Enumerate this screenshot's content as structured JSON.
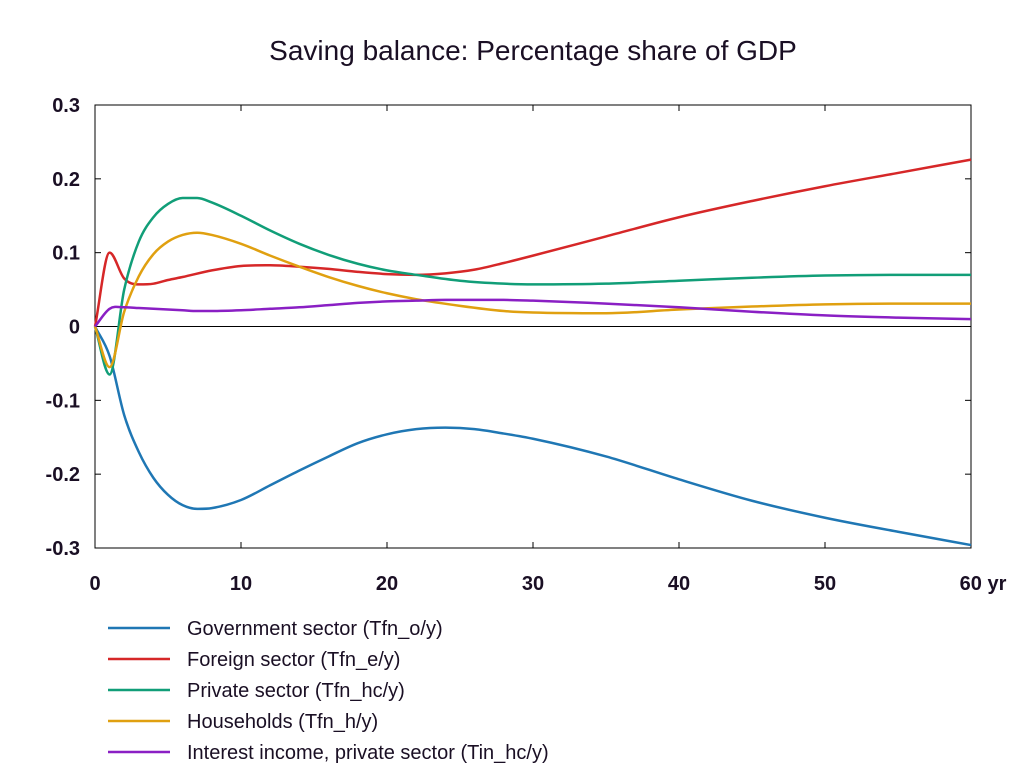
{
  "chart_data": {
    "type": "line",
    "title": "Saving balance: Percentage share of GDP",
    "xlabel": "",
    "ylabel": "",
    "xlim": [
      0,
      60
    ],
    "ylim": [
      -0.3,
      0.3
    ],
    "x_ticks": [
      "0",
      "10",
      "20",
      "30",
      "40",
      "50",
      "60 yr"
    ],
    "y_ticks": [
      "0.3",
      "0.2",
      "0.1",
      "0",
      "-0.1",
      "-0.2",
      "-0.3"
    ],
    "grid": false,
    "legend_position": "bottom",
    "series": [
      {
        "name": "Government sector (Tfn_o/y)",
        "color": "#1f77b4",
        "x": [
          0,
          1,
          2,
          3,
          4,
          5,
          6,
          7,
          8,
          10,
          12,
          14,
          16,
          18,
          20,
          22,
          24,
          26,
          28,
          30,
          35,
          40,
          45,
          50,
          55,
          60
        ],
        "y": [
          0,
          -0.04,
          -0.12,
          -0.17,
          -0.205,
          -0.228,
          -0.242,
          -0.247,
          -0.246,
          -0.235,
          -0.215,
          -0.195,
          -0.176,
          -0.158,
          -0.146,
          -0.139,
          -0.137,
          -0.139,
          -0.145,
          -0.152,
          -0.176,
          -0.207,
          -0.236,
          -0.259,
          -0.278,
          -0.296
        ]
      },
      {
        "name": "Foreign sector (Tfn_e/y)",
        "color": "#d62728",
        "x": [
          0,
          1,
          2,
          3,
          4,
          5,
          6,
          8,
          10,
          12,
          14,
          16,
          18,
          20,
          22,
          24,
          26,
          28,
          30,
          35,
          40,
          45,
          50,
          55,
          60
        ],
        "y": [
          0,
          0.1,
          0.065,
          0.057,
          0.058,
          0.063,
          0.067,
          0.076,
          0.082,
          0.083,
          0.081,
          0.078,
          0.074,
          0.071,
          0.07,
          0.072,
          0.077,
          0.086,
          0.096,
          0.122,
          0.148,
          0.17,
          0.19,
          0.208,
          0.226
        ]
      },
      {
        "name": "Private sector (Tfn_hc/y)",
        "color": "#119e78",
        "x": [
          0,
          1,
          2,
          3,
          4,
          5,
          6,
          7,
          8,
          10,
          12,
          14,
          16,
          18,
          20,
          22,
          25,
          28,
          30,
          35,
          40,
          45,
          50,
          55,
          60
        ],
        "y": [
          0,
          -0.065,
          0.05,
          0.115,
          0.148,
          0.166,
          0.174,
          0.174,
          0.168,
          0.15,
          0.13,
          0.112,
          0.097,
          0.085,
          0.076,
          0.07,
          0.062,
          0.058,
          0.057,
          0.058,
          0.062,
          0.066,
          0.069,
          0.07,
          0.07
        ]
      },
      {
        "name": "Households (Tfn_h/y)",
        "color": "#e0a010",
        "x": [
          0,
          1,
          2,
          3,
          4,
          5,
          6,
          7,
          8,
          10,
          12,
          14,
          16,
          18,
          20,
          22,
          25,
          28,
          30,
          35,
          40,
          45,
          50,
          55,
          60
        ],
        "y": [
          0,
          -0.055,
          0.02,
          0.068,
          0.098,
          0.115,
          0.124,
          0.127,
          0.124,
          0.112,
          0.096,
          0.081,
          0.067,
          0.055,
          0.045,
          0.037,
          0.028,
          0.021,
          0.019,
          0.018,
          0.023,
          0.027,
          0.03,
          0.031,
          0.031
        ]
      },
      {
        "name": "Interest income, private sector (Tin_hc/y)",
        "color": "#8a1fc4",
        "x": [
          0,
          1,
          2,
          3,
          4,
          5,
          6,
          7,
          8,
          10,
          12,
          14,
          16,
          18,
          20,
          22,
          24,
          26,
          28,
          30,
          35,
          40,
          45,
          50,
          55,
          60
        ],
        "y": [
          0,
          0.024,
          0.026,
          0.025,
          0.024,
          0.023,
          0.022,
          0.021,
          0.021,
          0.022,
          0.024,
          0.026,
          0.029,
          0.032,
          0.034,
          0.035,
          0.036,
          0.036,
          0.036,
          0.035,
          0.031,
          0.026,
          0.02,
          0.015,
          0.012,
          0.01
        ]
      }
    ]
  }
}
